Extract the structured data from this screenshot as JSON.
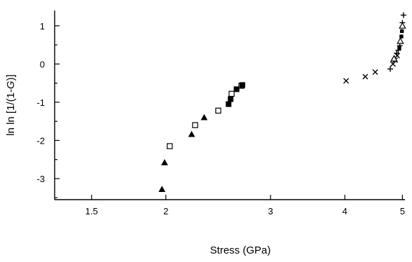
{
  "chart_data": {
    "type": "scatter",
    "xlabel": "Stress  (GPa)",
    "ylabel_parts": [
      "ln ln [1/(1-",
      "G",
      ")]"
    ],
    "x_scale": "log",
    "xlim": [
      1.3,
      5.05
    ],
    "ylim": [
      -3.55,
      1.4
    ],
    "x_ticks": [
      {
        "value": 1.5,
        "label": "1.5"
      },
      {
        "value": 2,
        "label": "2"
      },
      {
        "value": 3,
        "label": "3"
      },
      {
        "value": 4,
        "label": "4"
      },
      {
        "value": 5,
        "label": "5"
      }
    ],
    "y_ticks": [
      {
        "value": 1,
        "label": "1"
      },
      {
        "value": 0,
        "label": "0"
      },
      {
        "value": -1,
        "label": "-1"
      },
      {
        "value": -2,
        "label": "-2"
      },
      {
        "value": -3,
        "label": "-3"
      }
    ],
    "y_minor_ticks": [
      0.5,
      -0.5,
      -1.5,
      -2.5,
      -3.5
    ],
    "grid": false,
    "legend": "none",
    "series": [
      {
        "marker": "filled-triangle",
        "points": [
          [
            1.97,
            -3.28
          ],
          [
            1.99,
            -2.58
          ],
          [
            2.21,
            -1.84
          ],
          [
            2.32,
            -1.4
          ]
        ]
      },
      {
        "marker": "open-square",
        "points": [
          [
            2.03,
            -2.15
          ],
          [
            2.24,
            -1.6
          ],
          [
            2.45,
            -1.22
          ],
          [
            2.58,
            -0.78
          ],
          [
            2.68,
            -0.57
          ]
        ]
      },
      {
        "marker": "filled-square",
        "points": [
          [
            2.55,
            -1.05
          ],
          [
            2.57,
            -0.92
          ],
          [
            2.63,
            -0.66
          ],
          [
            2.69,
            -0.55
          ]
        ]
      },
      {
        "marker": "cross",
        "points": [
          [
            4.02,
            -0.44
          ],
          [
            4.33,
            -0.33
          ],
          [
            4.5,
            -0.21
          ],
          [
            4.82,
            0.0
          ],
          [
            4.86,
            0.1
          ],
          [
            4.9,
            0.22
          ]
        ]
      },
      {
        "marker": "plus",
        "points": [
          [
            4.77,
            -0.13
          ],
          [
            4.89,
            0.28
          ],
          [
            4.92,
            0.36
          ],
          [
            4.95,
            0.48
          ],
          [
            5.0,
            1.08
          ],
          [
            5.02,
            1.28
          ]
        ]
      },
      {
        "marker": "open-triangle",
        "points": [
          [
            4.84,
            0.14
          ],
          [
            4.96,
            0.6
          ],
          [
            5.0,
            1.0
          ]
        ]
      },
      {
        "marker": "small-filled-square",
        "points": [
          [
            4.94,
            0.42
          ],
          [
            4.98,
            0.72
          ],
          [
            4.99,
            0.86
          ]
        ]
      }
    ]
  }
}
